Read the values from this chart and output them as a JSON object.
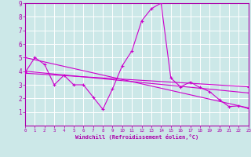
{
  "bg_color": "#cce8e8",
  "line_color": "#cc00cc",
  "grid_color": "#ffffff",
  "xlabel": "Windchill (Refroidissement éolien,°C)",
  "xlabel_color": "#aa00aa",
  "tick_color": "#aa00aa",
  "xmin": 0,
  "xmax": 23,
  "ymin": 0,
  "ymax": 9,
  "yticks": [
    1,
    2,
    3,
    4,
    5,
    6,
    7,
    8,
    9
  ],
  "xticks": [
    0,
    1,
    2,
    3,
    4,
    5,
    6,
    7,
    8,
    9,
    10,
    11,
    12,
    13,
    14,
    15,
    16,
    17,
    18,
    19,
    20,
    21,
    22,
    23
  ],
  "series": [
    {
      "x": [
        0,
        1,
        2,
        3,
        4,
        5,
        6,
        7,
        8,
        9,
        10,
        11,
        12,
        13,
        14,
        15,
        16,
        17,
        18,
        19,
        20,
        21,
        22,
        23
      ],
      "y": [
        3.9,
        5.0,
        4.5,
        3.0,
        3.7,
        3.0,
        3.0,
        2.1,
        1.2,
        2.7,
        4.4,
        5.5,
        7.7,
        8.6,
        9.0,
        3.5,
        2.85,
        3.2,
        2.8,
        2.5,
        1.9,
        1.4,
        1.45,
        1.25
      ]
    },
    {
      "x": [
        0,
        23
      ],
      "y": [
        5.0,
        1.3
      ]
    },
    {
      "x": [
        0,
        23
      ],
      "y": [
        4.0,
        2.4
      ]
    },
    {
      "x": [
        0,
        23
      ],
      "y": [
        3.85,
        2.85
      ]
    }
  ]
}
